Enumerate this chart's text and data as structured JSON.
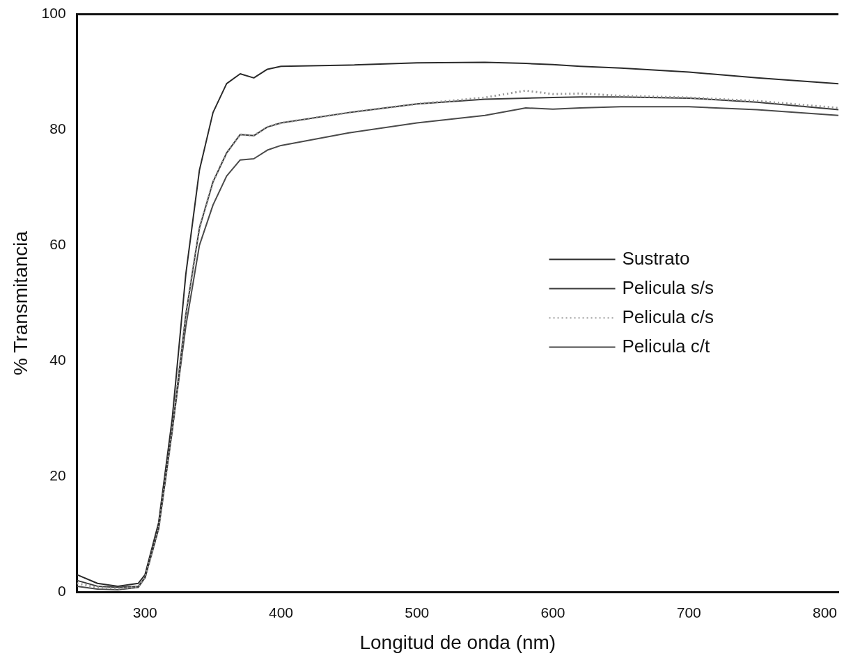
{
  "chart_data": {
    "type": "line",
    "xlabel": "Longitud de onda (nm)",
    "ylabel": "% Transmitancia",
    "xlim": [
      250,
      810
    ],
    "xticks": [
      300,
      400,
      500,
      600,
      700,
      800
    ],
    "ylim": [
      0,
      100
    ],
    "yticks": [
      0,
      20,
      40,
      60,
      80,
      100
    ],
    "grid": false,
    "legend": "right",
    "marker": "none",
    "x": [
      250,
      265,
      280,
      295,
      300,
      310,
      320,
      330,
      340,
      350,
      360,
      370,
      380,
      390,
      400,
      450,
      500,
      550,
      580,
      600,
      620,
      650,
      700,
      750,
      810
    ],
    "series": [
      {
        "name": "Sustrato",
        "color": "#2a2a2a",
        "line_style": "solid",
        "values": [
          3,
          1.5,
          1,
          1.5,
          3,
          12,
          30,
          55,
          73,
          83,
          88,
          89.7,
          89,
          90.5,
          91,
          91.2,
          91.6,
          91.7,
          91.5,
          91.3,
          91,
          90.7,
          90,
          89,
          88
        ]
      },
      {
        "name": "Pelicula s/s",
        "color": "#3a3a3a",
        "line_style": "solid",
        "values": [
          2,
          1,
          0.8,
          1,
          2.5,
          11,
          28,
          48,
          63,
          71,
          76,
          79.2,
          79,
          80.5,
          81.2,
          83,
          84.5,
          85.3,
          85.5,
          85.6,
          85.7,
          85.7,
          85.5,
          84.8,
          83.5
        ]
      },
      {
        "name": "Pelicula c/s",
        "color": "#9a9a9a",
        "line_style": "dotted",
        "values": [
          1.5,
          0.8,
          0.6,
          0.9,
          2.5,
          11,
          28,
          48,
          63,
          71,
          76,
          79.2,
          79,
          80.5,
          81.2,
          83,
          84.5,
          85.6,
          86.8,
          86.2,
          86.3,
          85.9,
          85.6,
          85,
          83.8
        ]
      },
      {
        "name": "Pelicula c/t",
        "color": "#4a4a4a",
        "line_style": "solid",
        "values": [
          1,
          0.5,
          0.4,
          0.8,
          2.5,
          11,
          28,
          46,
          60,
          67,
          72,
          74.8,
          75,
          76.5,
          77.3,
          79.5,
          81.2,
          82.5,
          83.8,
          83.6,
          83.8,
          84,
          84,
          83.5,
          82.5
        ]
      }
    ]
  }
}
